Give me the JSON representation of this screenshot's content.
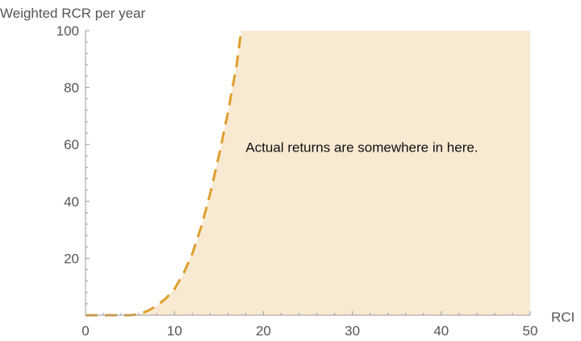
{
  "chart_data": {
    "type": "area",
    "xlabel": "RCI",
    "ylabel": "Weighted RCR per year",
    "xlim": [
      0,
      50
    ],
    "ylim": [
      0,
      100
    ],
    "x_ticks": [
      0,
      10,
      20,
      30,
      40,
      50
    ],
    "y_ticks": [
      20,
      40,
      60,
      80,
      100
    ],
    "grid": false,
    "annotation": {
      "text": "Actual returns are somewhere in here.",
      "x": 18.0,
      "y": 50
    },
    "boundary_curve": {
      "style": "dashed",
      "color": "#df9e2c",
      "x": [
        0,
        3,
        4,
        5,
        6,
        7,
        8,
        9,
        10,
        11,
        12,
        13,
        14,
        15,
        16,
        17,
        17.5
      ],
      "y": [
        0,
        0,
        0,
        0,
        0.3,
        1.5,
        3.3,
        5.8,
        9.2,
        14.5,
        21.5,
        31,
        42.5,
        56,
        71,
        88,
        100
      ]
    },
    "shaded_region": {
      "color": "#f8e9d2",
      "description_x_max": 50
    }
  }
}
